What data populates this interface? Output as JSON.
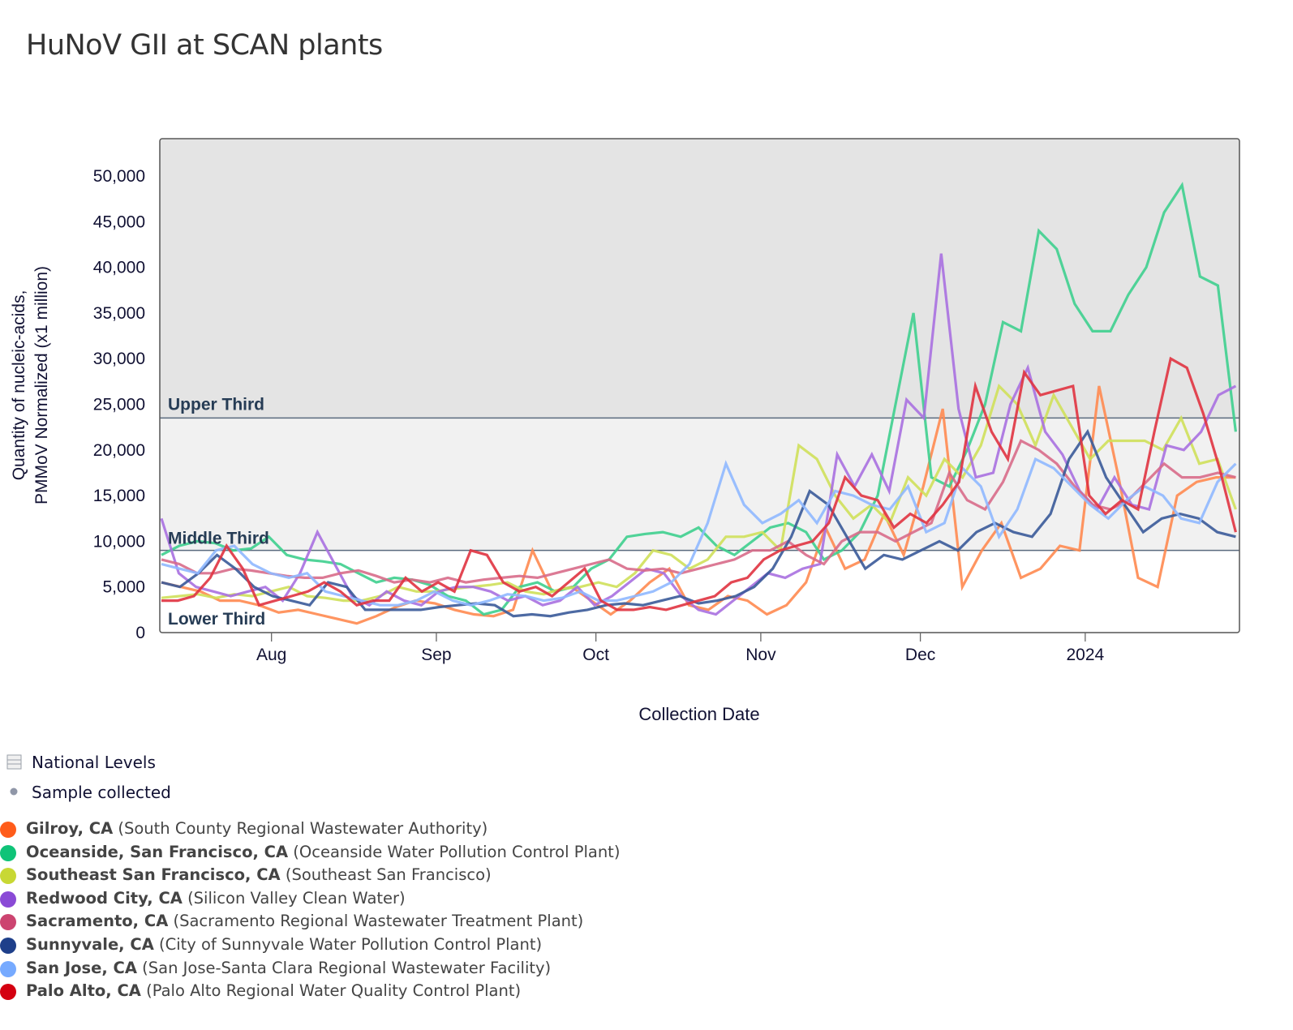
{
  "chart_data": {
    "type": "line",
    "title": "HuNoV GII at SCAN plants",
    "xlabel": "Collection Date",
    "ylabel": [
      "Quantity of nucleic-acids,",
      "PMMoV Normalized (x1 million)"
    ],
    "x_range": [
      "2023-07-11",
      "2024-01-30"
    ],
    "ylim": [
      0,
      54000
    ],
    "y_ticks": [
      0,
      5000,
      10000,
      15000,
      20000,
      25000,
      30000,
      35000,
      40000,
      45000,
      50000
    ],
    "y_tick_labels": [
      "0",
      "5,000",
      "10,000",
      "15,000",
      "20,000",
      "25,000",
      "30,000",
      "35,000",
      "40,000",
      "45,000",
      "50,000"
    ],
    "x_ticks": [
      "2023-08-01",
      "2023-09-01",
      "2023-10-01",
      "2023-11-01",
      "2023-12-01",
      "2024-01-01"
    ],
    "x_tick_labels": [
      "Aug",
      "Sep",
      "Oct",
      "Nov",
      "Dec",
      "2024"
    ],
    "grid": false,
    "bands": [
      {
        "name": "Lower Third",
        "from": 0,
        "to": 9000,
        "color": "#ffffff"
      },
      {
        "name": "Middle Third",
        "from": 9000,
        "to": 23500,
        "color": "#f1f1f1"
      },
      {
        "name": "Upper Third",
        "from": 23500,
        "to": 54000,
        "color": "#e4e4e4"
      }
    ],
    "band_labels": [
      "Upper Third",
      "Middle Third",
      "Lower Third"
    ],
    "x_days": [
      0,
      4,
      8,
      12,
      16,
      20,
      24,
      28,
      32,
      36,
      40,
      44,
      48,
      52,
      56,
      60,
      64,
      68,
      72,
      76,
      80,
      84,
      88,
      92,
      96,
      100,
      104,
      108,
      112,
      116,
      120,
      124,
      128,
      132,
      136,
      140,
      144,
      148,
      152,
      156,
      160,
      164,
      168,
      172,
      176,
      180,
      184,
      188,
      192,
      196,
      200,
      203
    ],
    "series": [
      {
        "name": "Gilroy, CA",
        "color": "#ff8a50",
        "values": [
          5500,
          5000,
          4500,
          3500,
          3500,
          3000,
          2200,
          2500,
          2000,
          1500,
          1000,
          1800,
          2800,
          3500,
          3200,
          2500,
          2000,
          1800,
          2500,
          9000,
          4500,
          5000,
          3500,
          2000,
          3500,
          5500,
          7000,
          3000,
          2500,
          4000,
          3500,
          2000,
          3000,
          5500,
          11500,
          7000,
          8000,
          13000,
          8500,
          16000,
          24500,
          5000,
          9000,
          12000,
          6000,
          7000,
          9500,
          9000,
          27000,
          17000,
          6000,
          5000,
          15000,
          16500,
          17000,
          17000
        ]
      },
      {
        "name": "Oceanside, San Francisco, CA",
        "color": "#3ecf8e",
        "values": [
          8500,
          9500,
          10000,
          9800,
          9000,
          9200,
          10500,
          8500,
          8000,
          7800,
          7500,
          6500,
          5500,
          6000,
          5800,
          5200,
          4000,
          3500,
          2000,
          2500,
          5000,
          5500,
          4500,
          5000,
          7000,
          8000,
          10500,
          10800,
          11000,
          10500,
          11500,
          9500,
          8500,
          10000,
          11500,
          12000,
          11000,
          8000,
          9000,
          11000,
          15000,
          25000,
          35000,
          17000,
          16000,
          20000,
          25000,
          34000,
          33000,
          44000,
          42000,
          36000,
          33000,
          33000,
          37000,
          40000,
          46000,
          49000,
          39000,
          38000,
          22000
        ]
      },
      {
        "name": "Southeast San Francisco, CA",
        "color": "#cfe05a",
        "values": [
          3800,
          4000,
          4200,
          3800,
          4200,
          4000,
          4500,
          5000,
          4000,
          3800,
          3500,
          3500,
          4000,
          5000,
          4500,
          4500,
          4800,
          5000,
          5200,
          5500,
          4500,
          4200,
          4800,
          5000,
          5500,
          5000,
          6500,
          9000,
          8500,
          7000,
          8000,
          10500,
          10500,
          11000,
          9000,
          20500,
          19000,
          15000,
          12500,
          14000,
          12000,
          17000,
          15000,
          19000,
          17000,
          20500,
          27000,
          25000,
          20500,
          26000,
          22500,
          19000,
          21000,
          21000,
          21000,
          20000,
          23500,
          18500,
          19000,
          13500
        ]
      },
      {
        "name": "Redwood City, CA",
        "color": "#a970e0",
        "values": [
          12500,
          6500,
          5000,
          4500,
          4000,
          4500,
          5000,
          3500,
          6500,
          11000,
          7500,
          4000,
          3000,
          4500,
          3500,
          3000,
          4500,
          5000,
          5000,
          4500,
          3500,
          4000,
          3000,
          3500,
          5000,
          3000,
          4000,
          5500,
          7000,
          6500,
          4000,
          2500,
          2000,
          3500,
          5000,
          6500,
          6000,
          7000,
          7500,
          19500,
          16000,
          19500,
          15500,
          25500,
          23500,
          41500,
          24500,
          17000,
          17500,
          25000,
          29000,
          22000,
          19500,
          15500,
          13500,
          17000,
          14000,
          13500,
          20500,
          20000,
          22000,
          26000,
          27000
        ]
      },
      {
        "name": "Sacramento, CA",
        "color": "#d86b8a",
        "values": [
          8000,
          7500,
          6500,
          6500,
          7000,
          6800,
          6500,
          6200,
          6000,
          6000,
          6500,
          6800,
          6200,
          5500,
          5800,
          5500,
          6000,
          5500,
          5800,
          6000,
          6200,
          6000,
          6500,
          7000,
          7500,
          8000,
          7000,
          6800,
          7000,
          6500,
          7000,
          7500,
          8000,
          9000,
          9000,
          10000,
          8500,
          7500,
          10000,
          11000,
          11000,
          10000,
          11000,
          12000,
          17500,
          14500,
          13500,
          16500,
          21000,
          20000,
          18500,
          16000,
          14000,
          13500,
          14500,
          16500,
          18500,
          17000,
          17000,
          17500,
          17000
        ]
      },
      {
        "name": "Sunnyvale, CA",
        "color": "#3a5a99",
        "values": [
          5500,
          5000,
          6500,
          8500,
          7000,
          5000,
          4000,
          3500,
          3000,
          5500,
          5000,
          2500,
          2500,
          2500,
          2500,
          2800,
          3000,
          3200,
          3000,
          1800,
          2000,
          1800,
          2200,
          2500,
          3000,
          3200,
          3000,
          3500,
          4000,
          3200,
          3500,
          4000,
          5000,
          7000,
          10500,
          15500,
          14000,
          10500,
          7000,
          8500,
          8000,
          9000,
          10000,
          9000,
          11000,
          12000,
          11000,
          10500,
          13000,
          19000,
          22000,
          17000,
          14000,
          11000,
          12500,
          13000,
          12500,
          11000,
          10500
        ]
      },
      {
        "name": "San Jose, CA",
        "color": "#8fb8ff",
        "values": [
          7500,
          7000,
          6500,
          9000,
          9500,
          7500,
          6500,
          6000,
          6500,
          4500,
          4000,
          3500,
          3000,
          3000,
          3500,
          4500,
          3500,
          3000,
          3500,
          4200,
          4000,
          3500,
          3800,
          4500,
          3500,
          3500,
          4000,
          4500,
          5500,
          7500,
          12000,
          18500,
          14000,
          12000,
          13000,
          14500,
          12000,
          15500,
          15000,
          14000,
          13500,
          16000,
          11000,
          12000,
          18000,
          16000,
          10500,
          13500,
          19000,
          18000,
          16000,
          14000,
          12500,
          14500,
          16000,
          15000,
          12500,
          12000,
          16500,
          18500
        ]
      },
      {
        "name": "Palo Alto, CA",
        "color": "#e03340",
        "values": [
          3500,
          3500,
          4000,
          6000,
          9500,
          7000,
          3000,
          3500,
          4000,
          4500,
          5500,
          4500,
          3000,
          3500,
          3500,
          6000,
          4500,
          5500,
          4500,
          9000,
          8500,
          5500,
          4500,
          5000,
          4000,
          5500,
          7000,
          3500,
          2500,
          2500,
          2800,
          2500,
          3000,
          3500,
          4000,
          5500,
          6000,
          8000,
          9000,
          9500,
          10000,
          12000,
          17000,
          15000,
          14500,
          11500,
          13000,
          12000,
          14000,
          16500,
          27000,
          22000,
          19000,
          28500,
          26000,
          26500,
          27000,
          15000,
          13000,
          14500,
          13500,
          22000,
          30000,
          29000,
          24000,
          18000,
          11000
        ]
      }
    ]
  },
  "legend": {
    "national_levels_label": "National Levels",
    "sample_collected_label": "Sample collected",
    "plants": [
      {
        "city": "Gilroy, CA",
        "facility": "(South County Regional Wastewater Authority)",
        "color": "#ff5c1a"
      },
      {
        "city": "Oceanside, San Francisco, CA",
        "facility": "(Oceanside Water Pollution Control Plant)",
        "color": "#0fc378"
      },
      {
        "city": "Southeast San Francisco, CA",
        "facility": "(Southeast San Francisco)",
        "color": "#c8d834"
      },
      {
        "city": "Redwood City, CA",
        "facility": "(Silicon Valley Clean Water)",
        "color": "#8a4ad6"
      },
      {
        "city": "Sacramento, CA",
        "facility": "(Sacramento Regional Wastewater Treatment Plant)",
        "color": "#cc4470"
      },
      {
        "city": "Sunnyvale, CA",
        "facility": "(City of Sunnyvale Water Pollution Control Plant)",
        "color": "#1e3f8a"
      },
      {
        "city": "San Jose, CA",
        "facility": "(San Jose-Santa Clara Regional Wastewater Facility)",
        "color": "#76aaff"
      },
      {
        "city": "Palo Alto, CA",
        "facility": "(Palo Alto Regional Water Quality Control Plant)",
        "color": "#d40010"
      }
    ]
  }
}
